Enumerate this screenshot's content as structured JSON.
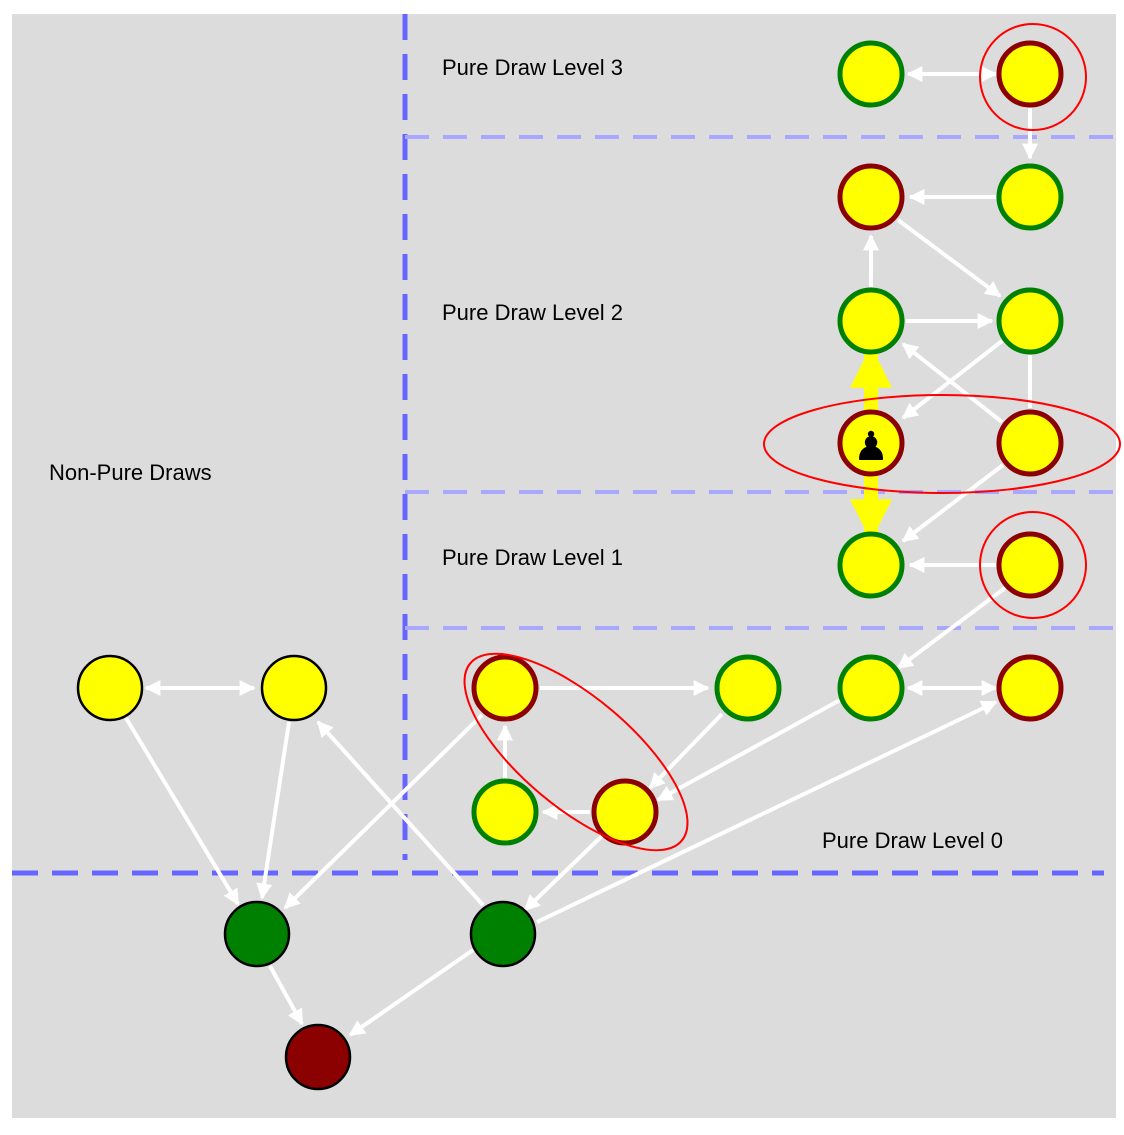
{
  "labels": {
    "level3": "Pure Draw Level 3",
    "level2": "Pure Draw Level 2",
    "level1": "Pure Draw Level 1",
    "level0": "Pure Draw Level 0",
    "non_pure": "Non-Pure Draws"
  },
  "colors": {
    "background": "#dcdcdc",
    "boundary_major": "#6666ff",
    "boundary_minor": "#a8a8ff",
    "edge": "#ffffff",
    "highlight_edge": "#ffff00",
    "highlight_ring": "#ff0000",
    "node_fill_draw": "#ffff00",
    "ring_green": "#008000",
    "ring_red": "#8b0000",
    "ring_black": "#000000",
    "fill_green": "#008000",
    "fill_red": "#8b0000"
  },
  "node_types": {
    "draw_green": "yellow fill, green ring",
    "draw_red": "yellow fill, dark-red ring",
    "draw_plain": "yellow fill, black ring",
    "win": "green fill",
    "loss": "dark-red fill"
  },
  "marker_icon": "chess-pawn-icon",
  "marker_glyph": "♟"
}
